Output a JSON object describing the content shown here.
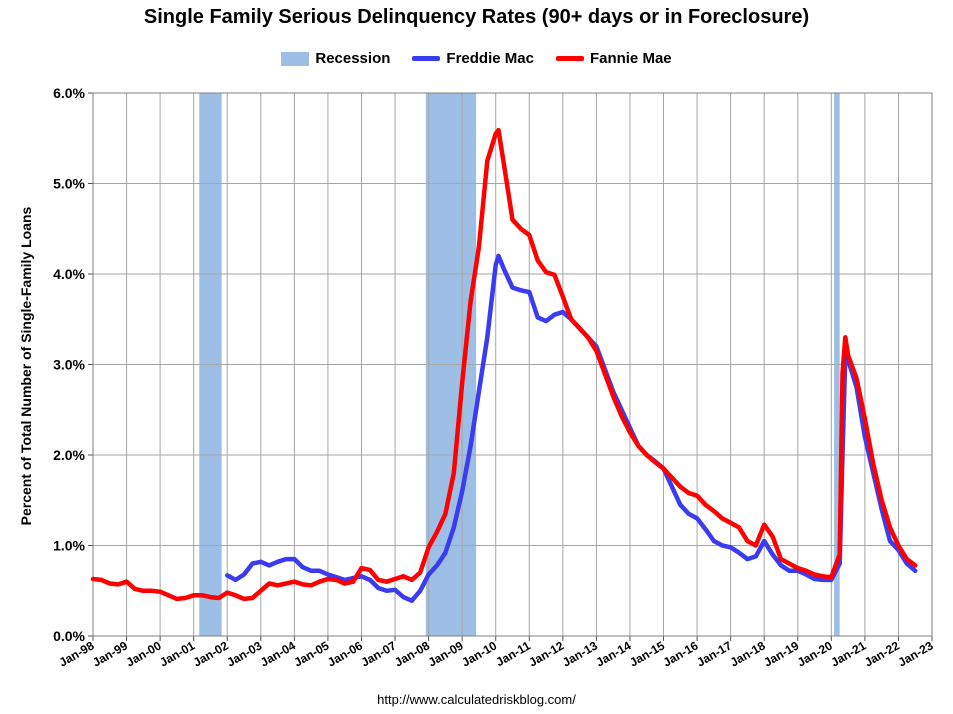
{
  "chart_data": {
    "type": "line",
    "title": "Single Family Serious Delinquency Rates (90+ days or in Foreclosure)",
    "ylabel": "Percent of Total Number of Single-Family Loans",
    "xlabel": "",
    "source": "http://www.calculatedriskblog.com/",
    "x_range": [
      "1998-01",
      "2023-01"
    ],
    "ylim": [
      0,
      6
    ],
    "y_ticks": [
      0,
      1,
      2,
      3,
      4,
      5,
      6
    ],
    "y_tick_labels": [
      "0.0%",
      "1.0%",
      "2.0%",
      "3.0%",
      "4.0%",
      "5.0%",
      "6.0%"
    ],
    "x_tick_labels": [
      "Jan-98",
      "Jan-99",
      "Jan-00",
      "Jan-01",
      "Jan-02",
      "Jan-03",
      "Jan-04",
      "Jan-05",
      "Jan-06",
      "Jan-07",
      "Jan-08",
      "Jan-09",
      "Jan-10",
      "Jan-11",
      "Jan-12",
      "Jan-13",
      "Jan-14",
      "Jan-15",
      "Jan-16",
      "Jan-17",
      "Jan-18",
      "Jan-19",
      "Jan-20",
      "Jan-21",
      "Jan-22",
      "Jan-23"
    ],
    "grid": "horizontal and vertical",
    "legend_position": "top",
    "recessions": [
      {
        "start": "2001-03",
        "end": "2001-11"
      },
      {
        "start": "2007-12",
        "end": "2009-06"
      },
      {
        "start": "2020-02",
        "end": "2020-04"
      }
    ],
    "legend": [
      {
        "name": "Recession",
        "color": "#9dbfe6",
        "kind": "box"
      },
      {
        "name": "Freddie Mac",
        "color": "#3b3bf2",
        "kind": "line"
      },
      {
        "name": "Fannie Mae",
        "color": "#ff0000",
        "kind": "line"
      }
    ],
    "series": [
      {
        "name": "Freddie Mac",
        "color": "#3b3bf2",
        "x": [
          "2002-01",
          "2002-04",
          "2002-07",
          "2002-10",
          "2003-01",
          "2003-04",
          "2003-07",
          "2003-10",
          "2004-01",
          "2004-04",
          "2004-07",
          "2004-10",
          "2005-01",
          "2005-04",
          "2005-07",
          "2005-10",
          "2006-01",
          "2006-04",
          "2006-07",
          "2006-10",
          "2007-01",
          "2007-04",
          "2007-07",
          "2007-10",
          "2008-01",
          "2008-04",
          "2008-07",
          "2008-10",
          "2009-01",
          "2009-04",
          "2009-07",
          "2009-10",
          "2010-01",
          "2010-02",
          "2010-04",
          "2010-07",
          "2010-10",
          "2011-01",
          "2011-04",
          "2011-07",
          "2011-10",
          "2012-01",
          "2012-04",
          "2012-07",
          "2012-10",
          "2013-01",
          "2013-04",
          "2013-07",
          "2013-10",
          "2014-01",
          "2014-04",
          "2014-07",
          "2014-10",
          "2015-01",
          "2015-04",
          "2015-07",
          "2015-10",
          "2016-01",
          "2016-04",
          "2016-07",
          "2016-10",
          "2017-01",
          "2017-04",
          "2017-07",
          "2017-10",
          "2018-01",
          "2018-04",
          "2018-07",
          "2018-10",
          "2019-01",
          "2019-04",
          "2019-07",
          "2019-10",
          "2020-01",
          "2020-04",
          "2020-05",
          "2020-06",
          "2020-07",
          "2020-10",
          "2021-01",
          "2021-04",
          "2021-07",
          "2021-10",
          "2022-01",
          "2022-04",
          "2022-07"
        ],
        "y": [
          0.67,
          0.62,
          0.68,
          0.8,
          0.82,
          0.78,
          0.82,
          0.85,
          0.85,
          0.76,
          0.72,
          0.72,
          0.68,
          0.65,
          0.62,
          0.64,
          0.66,
          0.62,
          0.53,
          0.5,
          0.51,
          0.43,
          0.39,
          0.5,
          0.68,
          0.78,
          0.92,
          1.2,
          1.6,
          2.1,
          2.7,
          3.3,
          4.1,
          4.2,
          4.05,
          3.85,
          3.82,
          3.8,
          3.52,
          3.48,
          3.55,
          3.58,
          3.5,
          3.4,
          3.3,
          3.2,
          2.95,
          2.7,
          2.5,
          2.3,
          2.1,
          2.0,
          1.93,
          1.85,
          1.65,
          1.45,
          1.35,
          1.3,
          1.18,
          1.05,
          1.0,
          0.98,
          0.92,
          0.85,
          0.88,
          1.05,
          0.9,
          0.78,
          0.72,
          0.72,
          0.68,
          0.63,
          0.62,
          0.62,
          0.8,
          2.0,
          3.1,
          3.05,
          2.75,
          2.2,
          1.8,
          1.4,
          1.05,
          0.95,
          0.8,
          0.72
        ]
      },
      {
        "name": "Fannie Mae",
        "color": "#ff0000",
        "x": [
          "1998-01",
          "1998-04",
          "1998-07",
          "1998-10",
          "1999-01",
          "1999-04",
          "1999-07",
          "1999-10",
          "2000-01",
          "2000-04",
          "2000-07",
          "2000-10",
          "2001-01",
          "2001-04",
          "2001-07",
          "2001-10",
          "2002-01",
          "2002-04",
          "2002-07",
          "2002-10",
          "2003-01",
          "2003-04",
          "2003-07",
          "2003-10",
          "2004-01",
          "2004-04",
          "2004-07",
          "2004-10",
          "2005-01",
          "2005-04",
          "2005-07",
          "2005-10",
          "2006-01",
          "2006-04",
          "2006-07",
          "2006-10",
          "2007-01",
          "2007-04",
          "2007-07",
          "2007-10",
          "2008-01",
          "2008-04",
          "2008-07",
          "2008-10",
          "2009-01",
          "2009-04",
          "2009-07",
          "2009-10",
          "2010-01",
          "2010-02",
          "2010-04",
          "2010-07",
          "2010-10",
          "2011-01",
          "2011-04",
          "2011-07",
          "2011-10",
          "2012-01",
          "2012-04",
          "2012-07",
          "2012-10",
          "2013-01",
          "2013-04",
          "2013-07",
          "2013-10",
          "2014-01",
          "2014-04",
          "2014-07",
          "2014-10",
          "2015-01",
          "2015-04",
          "2015-07",
          "2015-10",
          "2016-01",
          "2016-04",
          "2016-07",
          "2016-10",
          "2017-01",
          "2017-04",
          "2017-07",
          "2017-10",
          "2018-01",
          "2018-04",
          "2018-07",
          "2018-10",
          "2019-01",
          "2019-04",
          "2019-07",
          "2019-10",
          "2020-01",
          "2020-04",
          "2020-05",
          "2020-06",
          "2020-07",
          "2020-10",
          "2021-01",
          "2021-04",
          "2021-07",
          "2021-10",
          "2022-01",
          "2022-04",
          "2022-07"
        ],
        "y": [
          0.63,
          0.62,
          0.58,
          0.57,
          0.6,
          0.52,
          0.5,
          0.5,
          0.49,
          0.45,
          0.41,
          0.42,
          0.45,
          0.45,
          0.43,
          0.42,
          0.48,
          0.45,
          0.41,
          0.42,
          0.5,
          0.58,
          0.56,
          0.58,
          0.6,
          0.57,
          0.56,
          0.6,
          0.63,
          0.62,
          0.58,
          0.6,
          0.75,
          0.73,
          0.62,
          0.6,
          0.63,
          0.66,
          0.62,
          0.7,
          0.98,
          1.15,
          1.35,
          1.8,
          2.8,
          3.7,
          4.3,
          5.25,
          5.55,
          5.59,
          5.2,
          4.6,
          4.5,
          4.43,
          4.15,
          4.02,
          3.99,
          3.75,
          3.5,
          3.4,
          3.3,
          3.15,
          2.9,
          2.65,
          2.43,
          2.25,
          2.1,
          2.0,
          1.92,
          1.85,
          1.75,
          1.65,
          1.58,
          1.55,
          1.45,
          1.38,
          1.3,
          1.25,
          1.2,
          1.05,
          1.0,
          1.23,
          1.1,
          0.85,
          0.8,
          0.75,
          0.72,
          0.68,
          0.66,
          0.65,
          0.9,
          2.9,
          3.3,
          3.1,
          2.85,
          2.4,
          1.9,
          1.5,
          1.2,
          1.0,
          0.85,
          0.78
        ]
      }
    ]
  }
}
